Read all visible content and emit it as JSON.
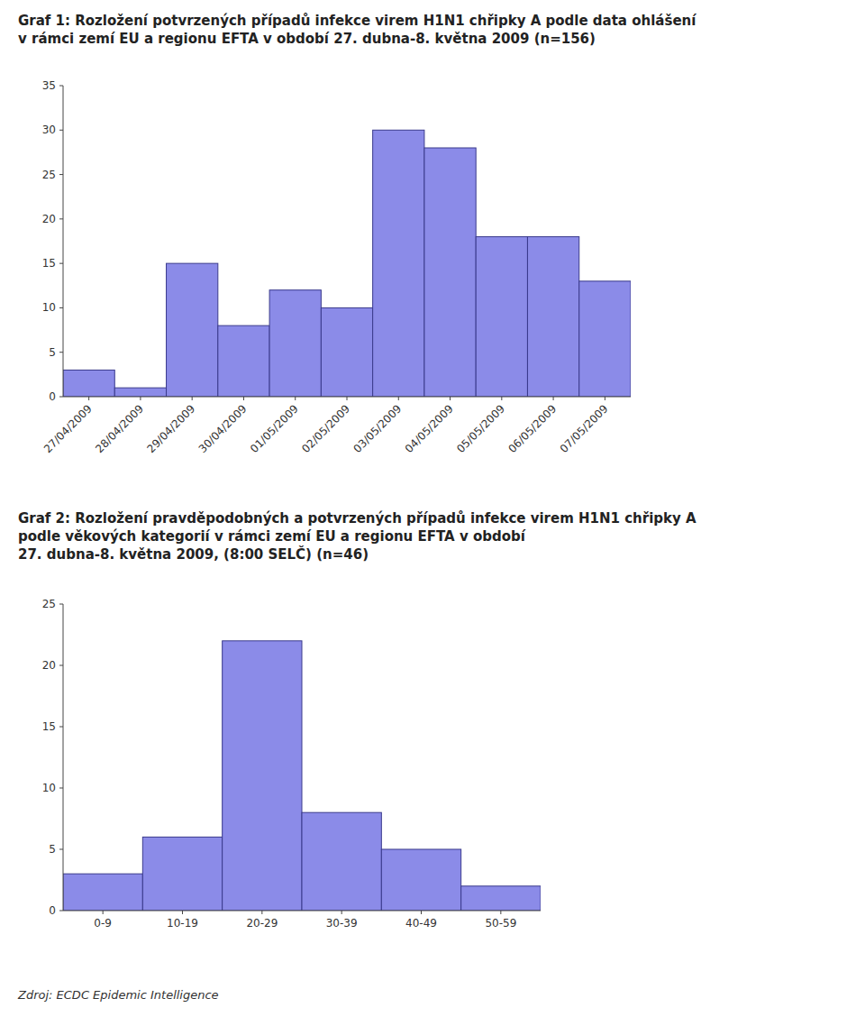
{
  "chart_data": [
    {
      "type": "bar",
      "title": "Graf 1: Rozložení potvrzených případů infekce virem H1N1 chřipky A podle data ohlášení\nv rámci zemí EU a regionu EFTA v období 27. dubna-8. května 2009 (n=156)",
      "categories": [
        "27/04/2009",
        "28/04/2009",
        "29/04/2009",
        "30/04/2009",
        "01/05/2009",
        "02/05/2009",
        "03/05/2009",
        "04/05/2009",
        "05/05/2009",
        "06/05/2009",
        "07/05/2009"
      ],
      "values": [
        3,
        1,
        15,
        8,
        12,
        10,
        30,
        28,
        18,
        18,
        13
      ],
      "color": "#8B8BE8",
      "ylim": [
        0,
        35
      ],
      "yticks": [
        0,
        5,
        10,
        15,
        20,
        25,
        30,
        35
      ]
    },
    {
      "type": "bar",
      "title": "Graf 2: Rozložení pravděpodobných a potvrzených případů infekce virem H1N1 chřipky A\npodle věkových kategorií v rámci zemí EU a regionu EFTA v období\n27. dubna-8. května 2009, (8:00 SELČ) (n=46)",
      "categories": [
        "0-9",
        "10-19",
        "20-29",
        "30-39",
        "40-49",
        "50-59"
      ],
      "values": [
        3,
        6,
        22,
        8,
        5,
        2
      ],
      "color": "#8B8BE8",
      "ylim": [
        0,
        25
      ],
      "yticks": [
        0,
        5,
        10,
        15,
        20,
        25
      ],
      "annotations": [
        "Zdroj: ECDC Epidemic Intelligence"
      ]
    }
  ]
}
